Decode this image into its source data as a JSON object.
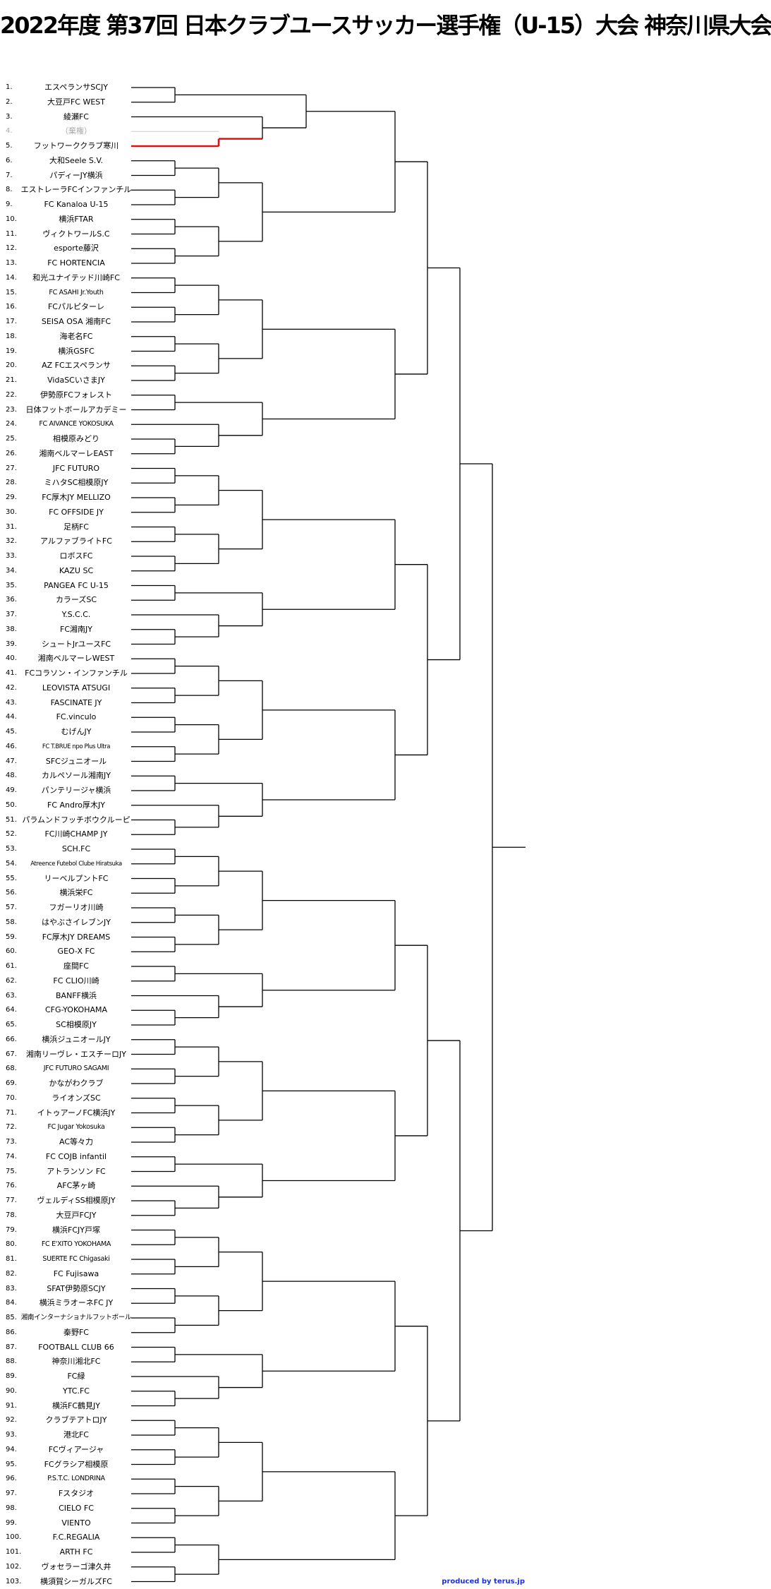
{
  "title": "2022年度 第37回 日本クラブユースサッカー選手権（U-15）大会 神奈川県大会",
  "credit": "produced by terus.jp",
  "colors": {
    "line": "#000000",
    "highlight": "#e01010",
    "credit": "#1a2fd6"
  },
  "highlight_entry": "5.",
  "entries": [
    {
      "no": "1.",
      "team": "エスペランサSCJY"
    },
    {
      "no": "2.",
      "team": "大豆戸FC WEST"
    },
    {
      "no": "3.",
      "team": "綾瀬FC"
    },
    {
      "no": "4.",
      "team": "（棄権）"
    },
    {
      "no": "5.",
      "team": "フットワーククラブ寒川"
    },
    {
      "no": "6.",
      "team": "大和Seele S.V."
    },
    {
      "no": "7.",
      "team": "パディーJY横浜"
    },
    {
      "no": "8.",
      "team": "エストレーラFCインファンチル"
    },
    {
      "no": "9.",
      "team": "FC Kanaloa U-15"
    },
    {
      "no": "10.",
      "team": "横浜FTAR"
    },
    {
      "no": "11.",
      "team": "ヴィクトワールS.C"
    },
    {
      "no": "12.",
      "team": "esporte藤沢"
    },
    {
      "no": "13.",
      "team": "FC HORTENCIA"
    },
    {
      "no": "14.",
      "team": "和光ユナイテッド川崎FC"
    },
    {
      "no": "15.",
      "team": "FC ASAHI Jr.Youth"
    },
    {
      "no": "16.",
      "team": "FCパルピターレ"
    },
    {
      "no": "17.",
      "team": "SEISA OSA 湘南FC"
    },
    {
      "no": "18.",
      "team": "海老名FC"
    },
    {
      "no": "19.",
      "team": "横浜GSFC"
    },
    {
      "no": "20.",
      "team": "AZ FCエスペランサ"
    },
    {
      "no": "21.",
      "team": "VidaSCいさまJY"
    },
    {
      "no": "22.",
      "team": "伊勢原FCフォレスト"
    },
    {
      "no": "23.",
      "team": "日体フットボールアカデミー"
    },
    {
      "no": "24.",
      "team": "FC AIVANCE YOKOSUKA"
    },
    {
      "no": "25.",
      "team": "相模原みどり"
    },
    {
      "no": "26.",
      "team": "湘南ベルマーレEAST"
    },
    {
      "no": "27.",
      "team": "JFC FUTURO"
    },
    {
      "no": "28.",
      "team": "ミハタSC相模原JY"
    },
    {
      "no": "29.",
      "team": "FC厚木JY MELLIZO"
    },
    {
      "no": "30.",
      "team": "FC OFFSIDE JY"
    },
    {
      "no": "31.",
      "team": "足柄FC"
    },
    {
      "no": "32.",
      "team": "アルファブライトFC"
    },
    {
      "no": "33.",
      "team": "ロボスFC"
    },
    {
      "no": "34.",
      "team": "KAZU SC"
    },
    {
      "no": "35.",
      "team": "PANGEA FC U-15"
    },
    {
      "no": "36.",
      "team": "カラーズSC"
    },
    {
      "no": "37.",
      "team": "Y.S.C.C."
    },
    {
      "no": "38.",
      "team": "FC湘南JY"
    },
    {
      "no": "39.",
      "team": "シュートJrユースFC"
    },
    {
      "no": "40.",
      "team": "湘南ベルマーレWEST"
    },
    {
      "no": "41.",
      "team": "FCコラソン・インファンチル"
    },
    {
      "no": "42.",
      "team": "LEOVISTA ATSUGI"
    },
    {
      "no": "43.",
      "team": "FASCINATE JY"
    },
    {
      "no": "44.",
      "team": "FC.vinculo"
    },
    {
      "no": "45.",
      "team": "むげんJY"
    },
    {
      "no": "46.",
      "team": "FC T.BRUE npo Plus Ultra"
    },
    {
      "no": "47.",
      "team": "SFCジュニオール"
    },
    {
      "no": "48.",
      "team": "カルペソール湘南JY"
    },
    {
      "no": "49.",
      "team": "パンテリージャ横浜"
    },
    {
      "no": "50.",
      "team": "FC Andro厚木JY"
    },
    {
      "no": "51.",
      "team": "パラムンドフッチボウクルーピ"
    },
    {
      "no": "52.",
      "team": "FC川崎CHAMP JY"
    },
    {
      "no": "53.",
      "team": "SCH.FC"
    },
    {
      "no": "54.",
      "team": "Atreence Futebol Clube Hiratsuka"
    },
    {
      "no": "55.",
      "team": "リーベルプントFC"
    },
    {
      "no": "56.",
      "team": "横浜栄FC"
    },
    {
      "no": "57.",
      "team": "フガーリオ川崎"
    },
    {
      "no": "58.",
      "team": "はやぶさイレブンJY"
    },
    {
      "no": "59.",
      "team": "FC厚木JY DREAMS"
    },
    {
      "no": "60.",
      "team": "GEO-X FC"
    },
    {
      "no": "61.",
      "team": "座間FC"
    },
    {
      "no": "62.",
      "team": "FC CLIO川崎"
    },
    {
      "no": "63.",
      "team": "BANFF横浜"
    },
    {
      "no": "64.",
      "team": "CFG-YOKOHAMA"
    },
    {
      "no": "65.",
      "team": "SC相模原JY"
    },
    {
      "no": "66.",
      "team": "横浜ジュニオールJY"
    },
    {
      "no": "67.",
      "team": "湘南リーヴレ・エスチーロJY"
    },
    {
      "no": "68.",
      "team": "JFC FUTURO SAGAMI"
    },
    {
      "no": "69.",
      "team": "かながわクラブ"
    },
    {
      "no": "70.",
      "team": "ライオンズSC"
    },
    {
      "no": "71.",
      "team": "イトゥアーノFC横浜JY"
    },
    {
      "no": "72.",
      "team": "FC Jugar Yokosuka"
    },
    {
      "no": "73.",
      "team": "AC等々力"
    },
    {
      "no": "74.",
      "team": "FC COJB infantil"
    },
    {
      "no": "75.",
      "team": "アトランソン FC"
    },
    {
      "no": "76.",
      "team": "AFC茅ヶ崎"
    },
    {
      "no": "77.",
      "team": "ヴェルディSS相模原JY"
    },
    {
      "no": "78.",
      "team": "大豆戸FCJY"
    },
    {
      "no": "79.",
      "team": "横浜FCJY戸塚"
    },
    {
      "no": "80.",
      "team": "FC E'XITO YOKOHAMA"
    },
    {
      "no": "81.",
      "team": "SUERTE FC Chigasaki"
    },
    {
      "no": "82.",
      "team": "FC Fujisawa"
    },
    {
      "no": "83.",
      "team": "SFAT伊勢原SCJY"
    },
    {
      "no": "84.",
      "team": "横浜ミラオーネFC JY"
    },
    {
      "no": "85.",
      "team": "湘南インターナショナルフットボール"
    },
    {
      "no": "86.",
      "team": "秦野FC"
    },
    {
      "no": "87.",
      "team": "FOOTBALL CLUB 66"
    },
    {
      "no": "88.",
      "team": "神奈川湘北FC"
    },
    {
      "no": "89.",
      "team": "FC緑"
    },
    {
      "no": "90.",
      "team": "YTC.FC"
    },
    {
      "no": "91.",
      "team": "横浜FC鶴見JY"
    },
    {
      "no": "92.",
      "team": "クラブテアトロJY"
    },
    {
      "no": "93.",
      "team": "港北FC"
    },
    {
      "no": "94.",
      "team": "FCヴィアージャ"
    },
    {
      "no": "95.",
      "team": "FCグラシア相模原"
    },
    {
      "no": "96.",
      "team": "P.S.T.C. LONDRINA"
    },
    {
      "no": "97.",
      "team": "Fスタジオ"
    },
    {
      "no": "98.",
      "team": "CIELO FC"
    },
    {
      "no": "99.",
      "team": "VIENTO"
    },
    {
      "no": "100.",
      "team": "F.C.REGALIA"
    },
    {
      "no": "101.",
      "team": "ARTH FC"
    },
    {
      "no": "102.",
      "team": "ヴォセラーゴ津久井"
    },
    {
      "no": "103.",
      "team": "横須賀シーガルズFC"
    }
  ]
}
